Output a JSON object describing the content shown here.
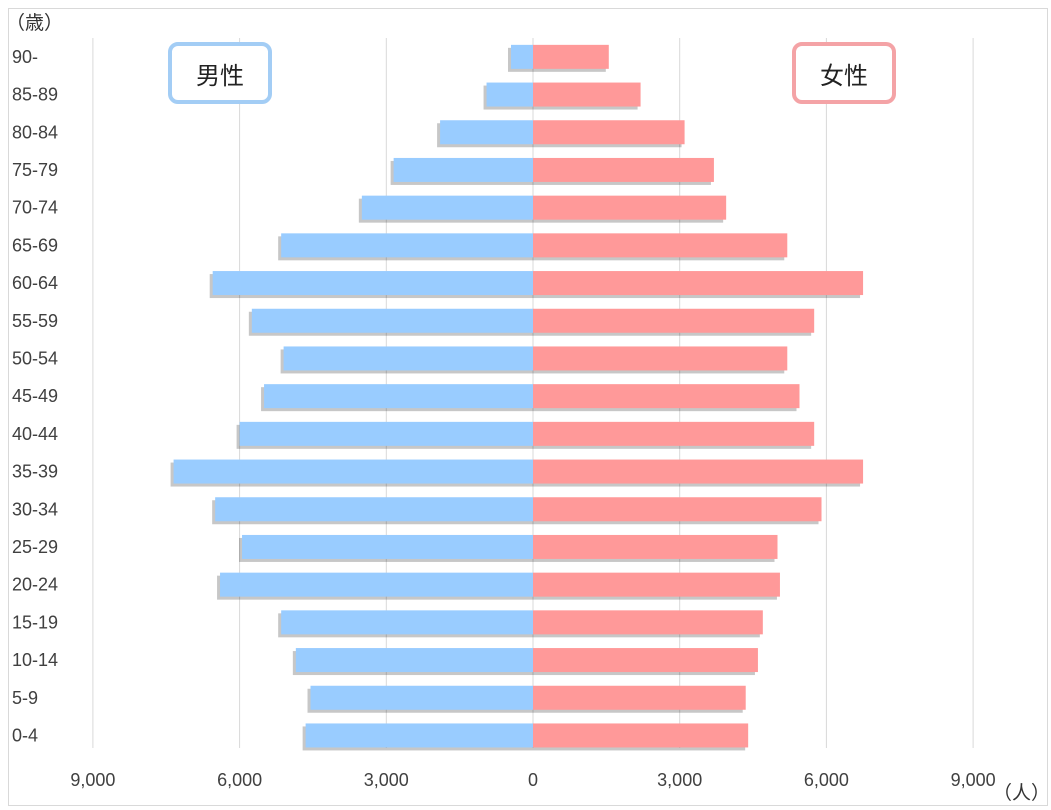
{
  "chart_data": {
    "type": "bar",
    "orientation": "horizontal",
    "subtype": "population-pyramid",
    "categories": [
      "90-",
      "85-89",
      "80-84",
      "75-79",
      "70-74",
      "65-69",
      "60-64",
      "55-59",
      "50-54",
      "45-49",
      "40-44",
      "35-39",
      "30-34",
      "25-29",
      "20-24",
      "15-19",
      "10-14",
      "5-9",
      "0-4"
    ],
    "series": [
      {
        "name": "男性",
        "side": "left",
        "color": "#99ccff",
        "values": [
          450,
          950,
          1900,
          2850,
          3500,
          5150,
          6550,
          5750,
          5100,
          5500,
          6000,
          7350,
          6500,
          5950,
          6400,
          5150,
          4850,
          4550,
          4650
        ]
      },
      {
        "name": "女性",
        "side": "right",
        "color": "#ff9999",
        "values": [
          1550,
          2200,
          3100,
          3700,
          3950,
          5200,
          6750,
          5750,
          5200,
          5450,
          5750,
          6750,
          5900,
          5000,
          5050,
          4700,
          4600,
          4350,
          4400
        ]
      }
    ],
    "x_ticks": [
      "9,000",
      "6,000",
      "3,000",
      "0",
      "3,000",
      "6,000",
      "9,000"
    ],
    "xlim": [
      -9000,
      9000
    ],
    "ylabel": "（歳）",
    "xlabel": "（人）",
    "grid": "vertical",
    "legend": "boxed labels at top-left (男性) and top-right (女性)"
  }
}
